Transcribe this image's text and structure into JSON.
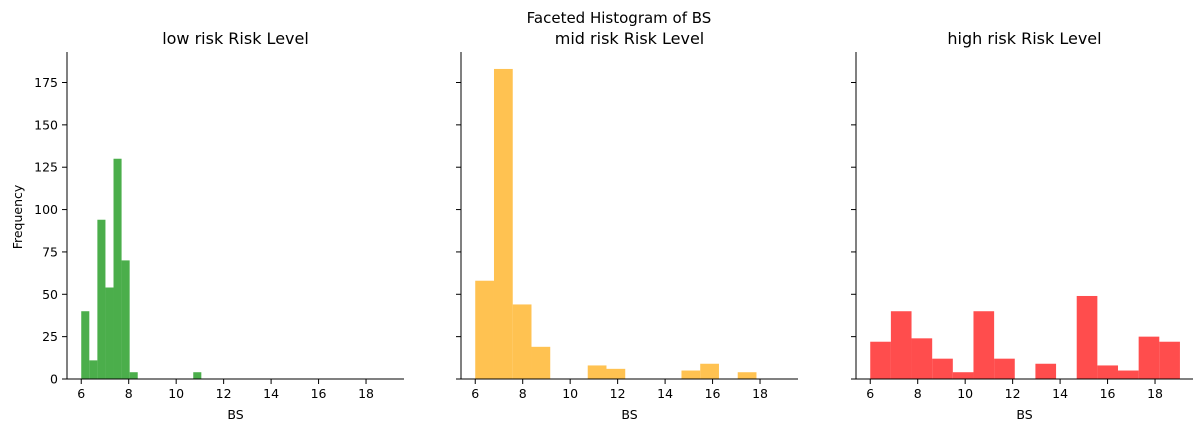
{
  "chart_data": {
    "type": "bar",
    "suptitle": "Faceted Histogram of BS",
    "ylabel": "Frequency",
    "ylim": [
      0,
      193
    ],
    "yticks": [
      0,
      25,
      50,
      75,
      100,
      125,
      150,
      175
    ],
    "xticks": [
      6,
      8,
      10,
      12,
      14,
      16,
      18
    ],
    "xlim": [
      5.4,
      19.6
    ],
    "grid": false,
    "facets": [
      {
        "title": "low risk Risk Level",
        "xlabel": "BS",
        "color": "#2ca02c",
        "opacity": 0.85,
        "bins": [
          {
            "x0": 6.0,
            "x1": 6.34,
            "value": 40
          },
          {
            "x0": 6.34,
            "x1": 6.68,
            "value": 11
          },
          {
            "x0": 6.68,
            "x1": 7.02,
            "value": 94
          },
          {
            "x0": 7.02,
            "x1": 7.36,
            "value": 54
          },
          {
            "x0": 7.36,
            "x1": 7.7,
            "value": 130
          },
          {
            "x0": 7.7,
            "x1": 8.04,
            "value": 70
          },
          {
            "x0": 8.04,
            "x1": 8.38,
            "value": 4
          },
          {
            "x0": 10.72,
            "x1": 11.06,
            "value": 4
          }
        ]
      },
      {
        "title": "mid risk Risk Level",
        "xlabel": "BS",
        "color": "#ffb732",
        "opacity": 0.85,
        "bins": [
          {
            "x0": 6.0,
            "x1": 6.79,
            "value": 58
          },
          {
            "x0": 6.79,
            "x1": 7.58,
            "value": 183
          },
          {
            "x0": 7.58,
            "x1": 8.37,
            "value": 44
          },
          {
            "x0": 8.37,
            "x1": 9.16,
            "value": 19
          },
          {
            "x0": 10.74,
            "x1": 11.53,
            "value": 8
          },
          {
            "x0": 11.53,
            "x1": 12.32,
            "value": 6
          },
          {
            "x0": 14.69,
            "x1": 15.48,
            "value": 5
          },
          {
            "x0": 15.48,
            "x1": 16.27,
            "value": 9
          },
          {
            "x0": 17.06,
            "x1": 17.85,
            "value": 4
          }
        ]
      },
      {
        "title": "high risk Risk Level",
        "xlabel": "BS",
        "color": "#ff2020",
        "opacity": 0.8,
        "bins": [
          {
            "x0": 6.0,
            "x1": 6.87,
            "value": 22
          },
          {
            "x0": 6.87,
            "x1": 7.74,
            "value": 40
          },
          {
            "x0": 7.74,
            "x1": 8.61,
            "value": 24
          },
          {
            "x0": 8.61,
            "x1": 9.48,
            "value": 12
          },
          {
            "x0": 9.48,
            "x1": 10.35,
            "value": 4
          },
          {
            "x0": 10.35,
            "x1": 11.22,
            "value": 40
          },
          {
            "x0": 11.22,
            "x1": 12.09,
            "value": 12
          },
          {
            "x0": 12.96,
            "x1": 13.83,
            "value": 9
          },
          {
            "x0": 14.7,
            "x1": 15.57,
            "value": 49
          },
          {
            "x0": 15.57,
            "x1": 16.44,
            "value": 8
          },
          {
            "x0": 16.44,
            "x1": 17.31,
            "value": 5
          },
          {
            "x0": 17.31,
            "x1": 18.18,
            "value": 25
          },
          {
            "x0": 18.18,
            "x1": 19.05,
            "value": 22
          }
        ]
      }
    ]
  }
}
